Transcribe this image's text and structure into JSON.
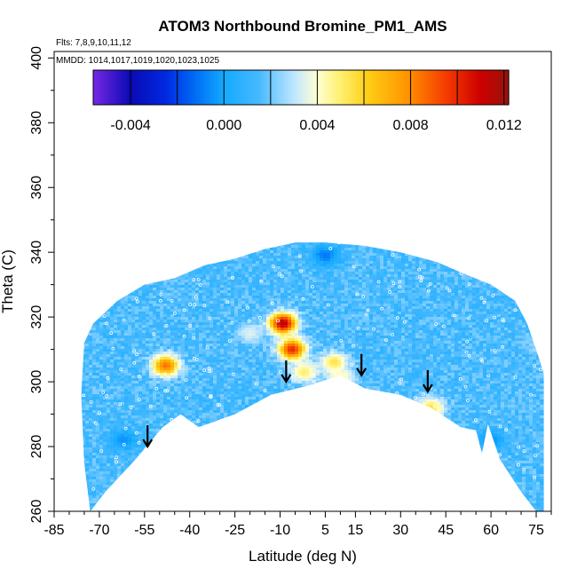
{
  "chart_data": {
    "type": "heatmap",
    "title": "ATOM3 Northbound Bromine_PM1_AMS",
    "subtitle_lines": [
      "Flts: 7,8,9,10,11,12",
      "MMDD: 1014,1017,1019,1020,1023,1025"
    ],
    "xlabel": "Latitude (deg N)",
    "ylabel": "Theta (C)",
    "xlim": [
      -85,
      80
    ],
    "ylim": [
      260,
      402
    ],
    "x_ticks": [
      -85,
      -70,
      -55,
      -40,
      -25,
      -10,
      5,
      15,
      30,
      45,
      60,
      75
    ],
    "y_ticks": [
      260,
      280,
      300,
      320,
      340,
      360,
      380,
      400
    ],
    "colorbar": {
      "min": -0.0056,
      "max": 0.0122,
      "tick_values": [
        -0.004,
        0.0,
        0.004,
        0.008,
        0.012
      ],
      "tick_labels": [
        "-0.004",
        "0.000",
        "0.004",
        "0.008",
        "0.012"
      ]
    },
    "boundary": {
      "lower": [
        [
          -73,
          260
        ],
        [
          -68,
          266
        ],
        [
          -58,
          276
        ],
        [
          -49,
          286
        ],
        [
          -43,
          290
        ],
        [
          -37,
          286
        ],
        [
          -25,
          290
        ],
        [
          -13,
          296
        ],
        [
          0,
          299
        ],
        [
          10,
          302
        ],
        [
          18,
          298
        ],
        [
          30,
          296
        ],
        [
          40,
          292
        ],
        [
          50,
          286
        ],
        [
          55,
          285
        ],
        [
          57,
          278
        ],
        [
          59,
          287
        ],
        [
          63,
          276
        ],
        [
          70,
          266
        ],
        [
          75,
          260
        ],
        [
          80,
          260
        ]
      ],
      "upper": [
        [
          80,
          260
        ],
        [
          79,
          298
        ],
        [
          75,
          310
        ],
        [
          72,
          318
        ],
        [
          68,
          325
        ],
        [
          60,
          330
        ],
        [
          52,
          333
        ],
        [
          42,
          337
        ],
        [
          30,
          340
        ],
        [
          18,
          342
        ],
        [
          5,
          343
        ],
        [
          -5,
          343
        ],
        [
          -15,
          341
        ],
        [
          -25,
          338
        ],
        [
          -35,
          336
        ],
        [
          -45,
          332
        ],
        [
          -55,
          330
        ],
        [
          -64,
          325
        ],
        [
          -72,
          318
        ],
        [
          -75,
          312
        ],
        [
          -76,
          296
        ],
        [
          -75,
          275
        ],
        [
          -73,
          260
        ]
      ]
    },
    "background_value": 0.0015,
    "features": [
      {
        "lat": -9,
        "theta": 318,
        "value": 0.0115
      },
      {
        "lat": -6,
        "theta": 310,
        "value": 0.01
      },
      {
        "lat": -48,
        "theta": 305,
        "value": 0.0085
      },
      {
        "lat": 8,
        "theta": 306,
        "value": 0.0055
      },
      {
        "lat": -2,
        "theta": 303,
        "value": 0.005
      },
      {
        "lat": 10,
        "theta": 301,
        "value": 0.0045
      },
      {
        "lat": 40,
        "theta": 292,
        "value": 0.0055
      },
      {
        "lat": 78,
        "theta": 312,
        "value": 0.004
      },
      {
        "lat": -20,
        "theta": 315,
        "value": 0.0035
      },
      {
        "lat": 5,
        "theta": 339,
        "value": -0.001
      },
      {
        "lat": -62,
        "theta": 282,
        "value": -0.0005
      },
      {
        "lat": 60,
        "theta": 282,
        "value": -0.0005
      }
    ],
    "arrows": [
      {
        "lat": -54,
        "theta": 280
      },
      {
        "lat": -8,
        "theta": 300
      },
      {
        "lat": 17,
        "theta": 302
      },
      {
        "lat": 39,
        "theta": 297
      }
    ]
  }
}
